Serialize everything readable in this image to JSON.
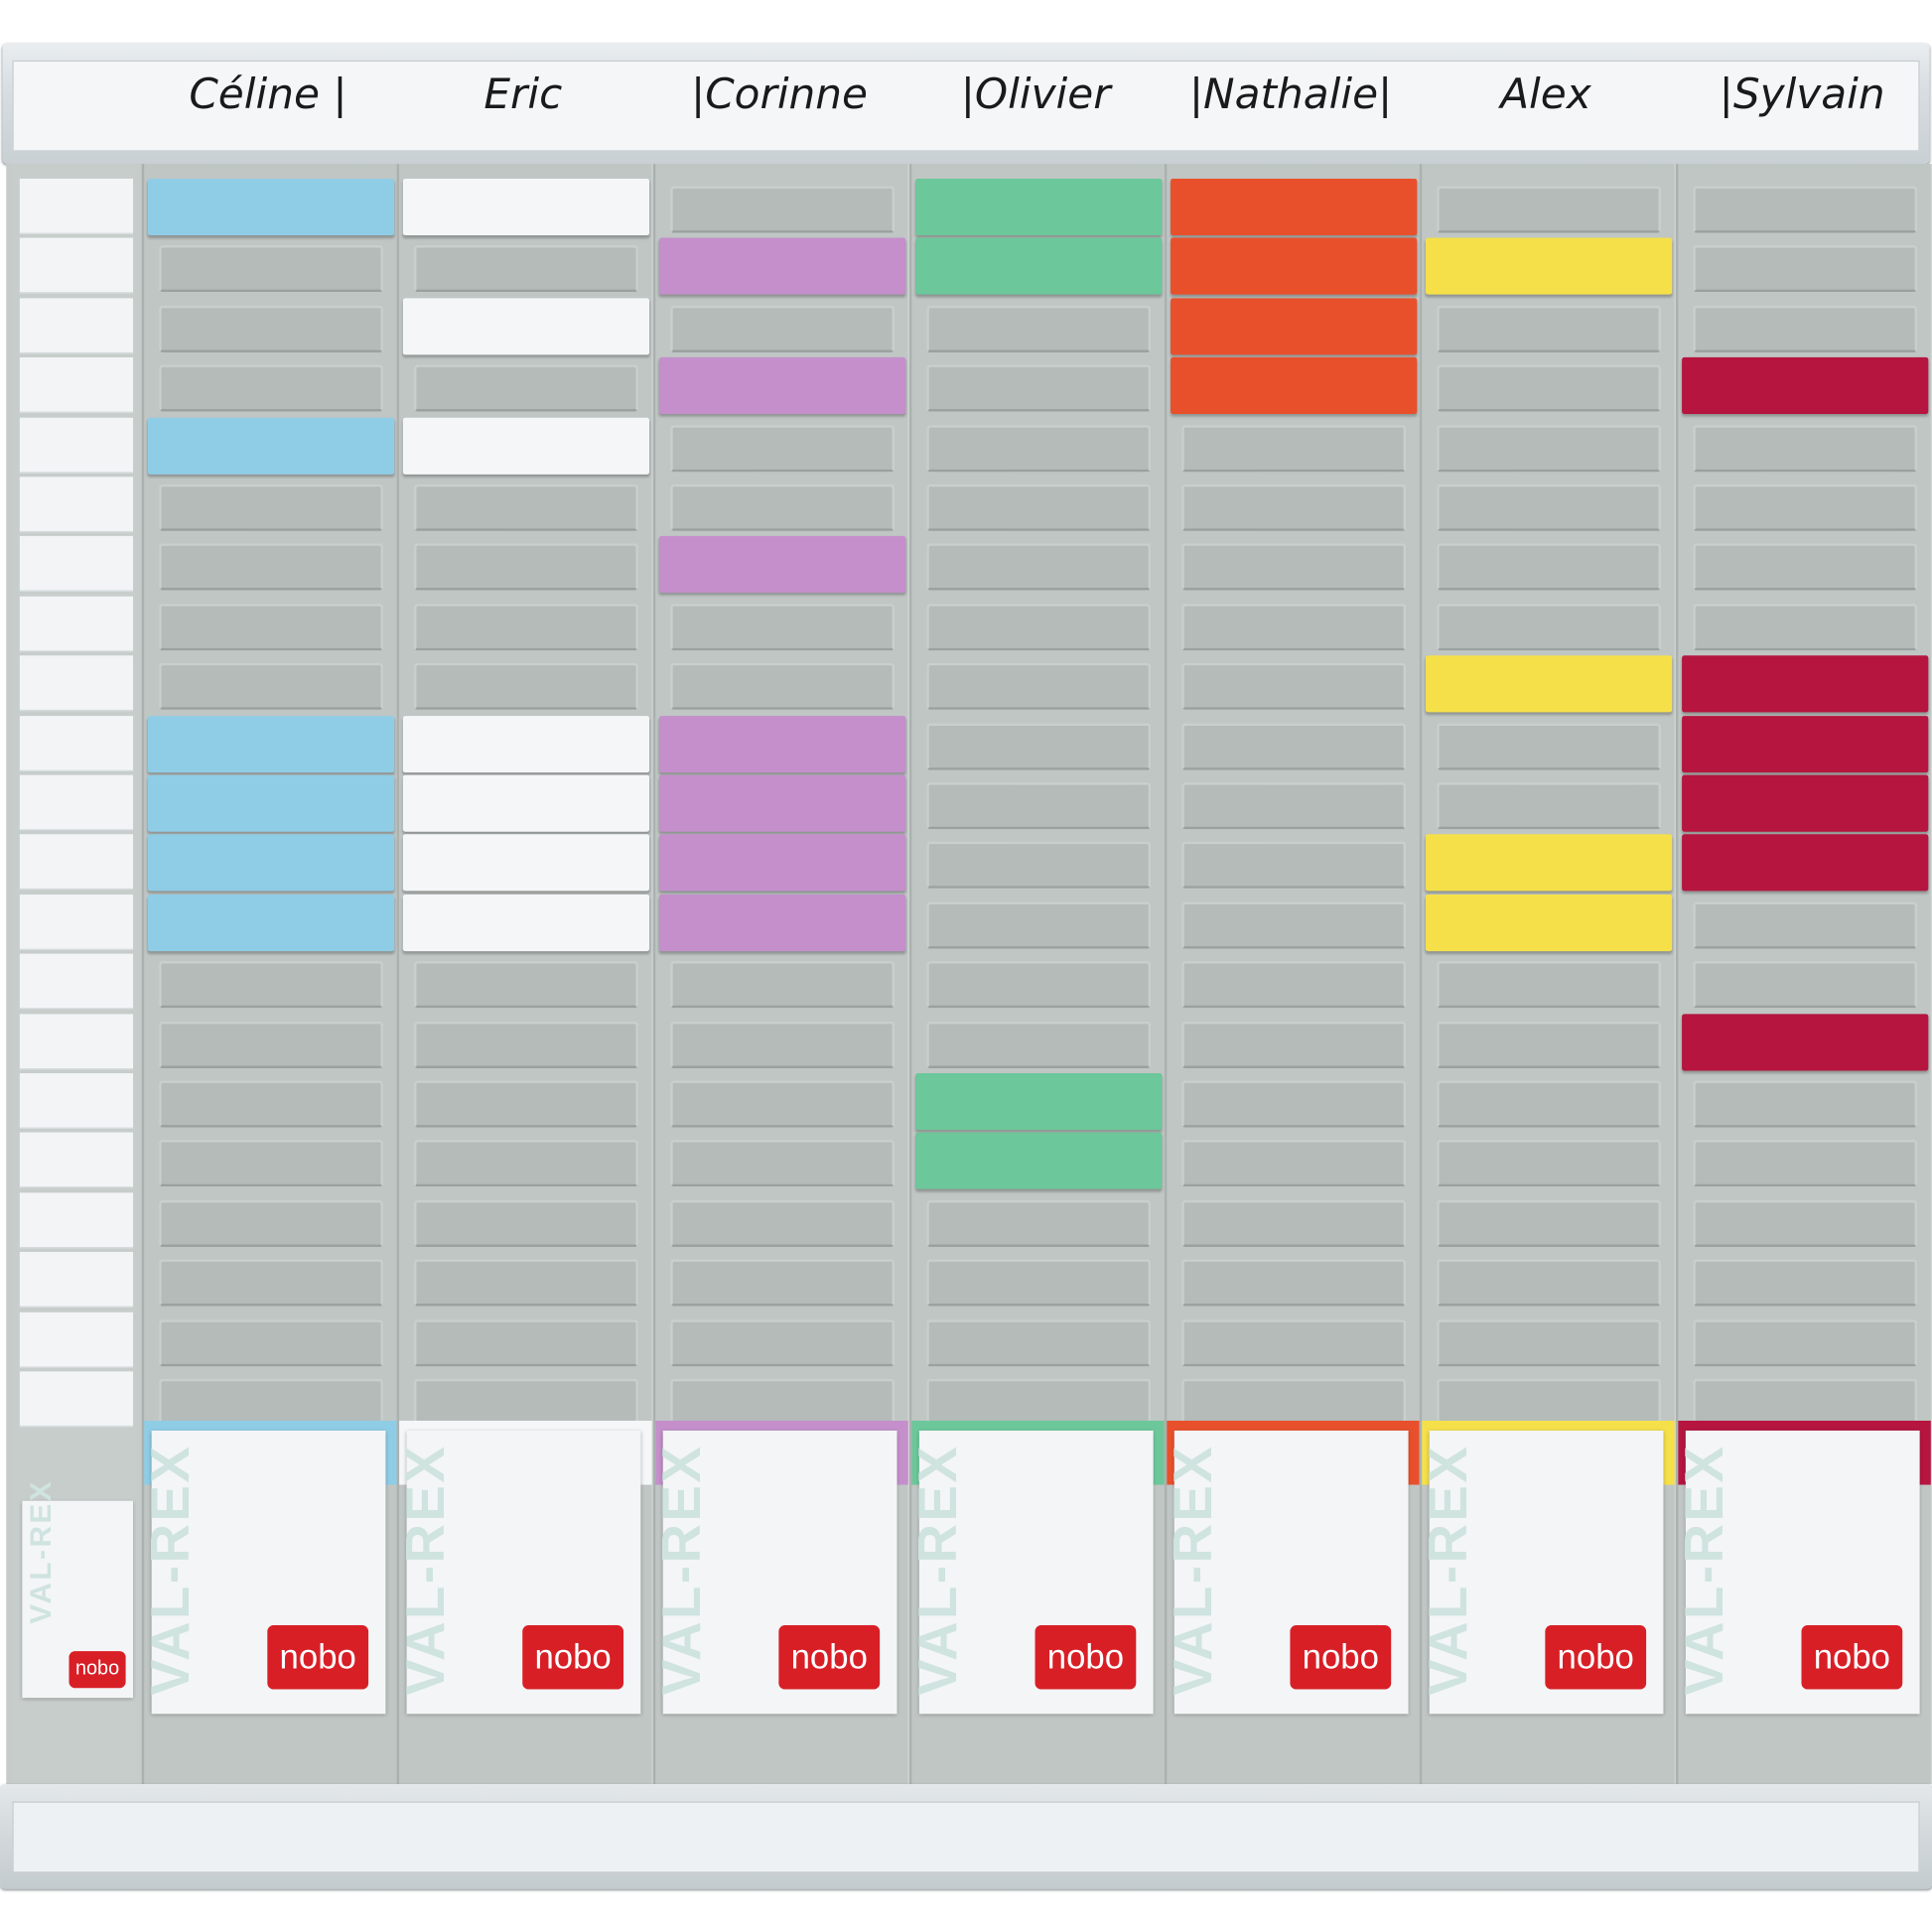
{
  "board": {
    "names": [
      "Céline |",
      "Eric",
      "|Corinne",
      "|Olivier",
      "|Nathalie|",
      "Alex",
      "|Sylvain"
    ],
    "rows": 21,
    "columns": [
      {
        "color": "#8fcde6",
        "cards": [
          0,
          4,
          9,
          10,
          11,
          12
        ]
      },
      {
        "color": "#f4f6f8",
        "cards": [
          0,
          2,
          4,
          9,
          10,
          11,
          12
        ]
      },
      {
        "color": "#c48fcb",
        "cards": [
          1,
          3,
          6,
          9,
          10,
          11,
          12
        ]
      },
      {
        "color": "#6cc79a",
        "cards": [
          0,
          1,
          15,
          16
        ]
      },
      {
        "color": "#e8502c",
        "cards": [
          0,
          1,
          2,
          3
        ]
      },
      {
        "color": "#f5e04a",
        "cards": [
          1,
          8,
          11,
          12
        ]
      },
      {
        "color": "#b5153f",
        "cards": [
          3,
          8,
          9,
          10,
          11,
          14
        ]
      }
    ],
    "box_label": "VAL-REX",
    "brand": "nobo"
  }
}
